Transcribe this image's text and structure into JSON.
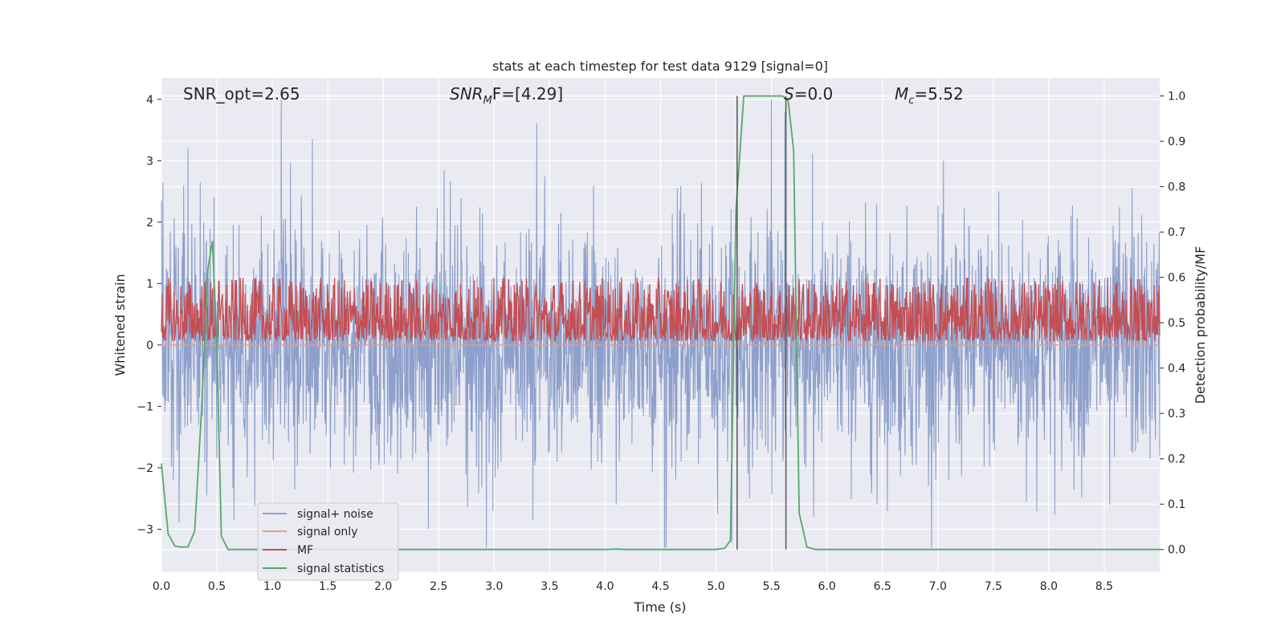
{
  "chart_data": {
    "type": "line",
    "title": "stats at each timestep for test data 9129 [signal=0]",
    "xlabel": "Time (s)",
    "ylabel_left": "Whitened strain",
    "ylabel_right": "Detection probability/MF",
    "xlim": [
      0.0,
      9.0
    ],
    "ylim_left": [
      -3.7,
      4.35
    ],
    "ylim_right": [
      -0.05,
      1.04
    ],
    "x_ticks": [
      0.0,
      0.5,
      1.0,
      1.5,
      2.0,
      2.5,
      3.0,
      3.5,
      4.0,
      4.5,
      5.0,
      5.5,
      6.0,
      6.5,
      7.0,
      7.5,
      8.0,
      8.5
    ],
    "x_tick_labels": [
      "0.0",
      "0.5",
      "1.0",
      "1.5",
      "2.0",
      "2.5",
      "3.0",
      "3.5",
      "4.0",
      "4.5",
      "5.0",
      "5.5",
      "6.0",
      "6.5",
      "7.0",
      "7.5",
      "8.0",
      "8.5"
    ],
    "y_left_ticks": [
      -3,
      -2,
      -1,
      0,
      1,
      2,
      3,
      4
    ],
    "y_left_tick_labels": [
      "−3",
      "−2",
      "−1",
      "0",
      "1",
      "2",
      "3",
      "4"
    ],
    "y_right_ticks": [
      0.0,
      0.1,
      0.2,
      0.3,
      0.4,
      0.5,
      0.6,
      0.7,
      0.8,
      0.9,
      1.0
    ],
    "y_right_tick_labels": [
      "0.0",
      "0.1",
      "0.2",
      "0.3",
      "0.4",
      "0.5",
      "0.6",
      "0.7",
      "0.8",
      "0.9",
      "1.0"
    ],
    "grid": true,
    "legend_position": "lower-left",
    "annotations": {
      "snr_opt": "SNR_opt=2.65",
      "snr_mf_main": "SNR",
      "snr_mf_sub": "M",
      "snr_mf_rest": "F=[4.29]",
      "s_value_main": "S",
      "s_value_rest": "=0.0",
      "mc_main": "M",
      "mc_sub": "c",
      "mc_rest": "=5.52"
    },
    "vertical_lines_x": [
      5.19,
      5.63
    ],
    "series": [
      {
        "name": "signal+ noise",
        "color": "#8da0cb",
        "axis": "left",
        "description_range": [
          -3.3,
          4.0
        ],
        "peak_points": [
          [
            0.0,
            2.35
          ],
          [
            0.08,
            1.85
          ],
          [
            0.13,
            1.6
          ],
          [
            0.2,
            2.6
          ],
          [
            0.24,
            3.2
          ],
          [
            0.35,
            2.65
          ],
          [
            0.41,
            -2.45
          ],
          [
            1.08,
            4.0
          ],
          [
            1.36,
            3.35
          ],
          [
            1.2,
            -2.35
          ],
          [
            2.3,
            2.25
          ],
          [
            2.55,
            2.85
          ],
          [
            2.93,
            -3.3
          ],
          [
            2.99,
            -2.7
          ],
          [
            3.35,
            -2.85
          ],
          [
            3.6,
            2.15
          ],
          [
            4.1,
            -2.6
          ],
          [
            4.55,
            -3.3
          ],
          [
            4.65,
            2.55
          ],
          [
            5.5,
            4.0
          ],
          [
            5.62,
            3.8
          ],
          [
            5.88,
            -2.8
          ],
          [
            6.45,
            -2.6
          ],
          [
            7.1,
            -2.2
          ],
          [
            7.55,
            2.5
          ],
          [
            7.8,
            -2.55
          ],
          [
            8.2,
            2.1
          ],
          [
            8.55,
            -2.6
          ],
          [
            8.75,
            2.55
          ],
          [
            9.0,
            -1.8
          ]
        ]
      },
      {
        "name": "signal only",
        "color": "#e89c7f",
        "axis": "left",
        "x": [
          0.0,
          9.0
        ],
        "y": [
          0.0,
          0.0
        ]
      },
      {
        "name": "MF",
        "color": "#c44e52",
        "axis": "right",
        "description_range": [
          0.46,
          0.6
        ]
      },
      {
        "name": "signal statistics",
        "color": "#55a868",
        "axis": "right",
        "x": [
          0.0,
          0.06,
          0.12,
          0.18,
          0.24,
          0.3,
          0.36,
          0.42,
          0.46,
          0.5,
          0.54,
          0.6,
          1.0,
          2.0,
          3.0,
          4.0,
          4.1,
          4.2,
          5.0,
          5.08,
          5.13,
          5.18,
          5.25,
          5.35,
          5.6,
          5.65,
          5.7,
          5.75,
          5.82,
          5.9,
          6.5,
          7.5,
          8.5,
          9.0
        ],
        "y": [
          0.19,
          0.035,
          0.008,
          0.005,
          0.006,
          0.04,
          0.3,
          0.62,
          0.68,
          0.45,
          0.03,
          0.0,
          0.0,
          0.0,
          0.0,
          0.0,
          0.001,
          0.0,
          0.0,
          0.003,
          0.02,
          0.75,
          1.0,
          1.0,
          1.0,
          0.99,
          0.88,
          0.08,
          0.005,
          0.0,
          0.0,
          0.0,
          0.0,
          0.0
        ]
      }
    ]
  }
}
